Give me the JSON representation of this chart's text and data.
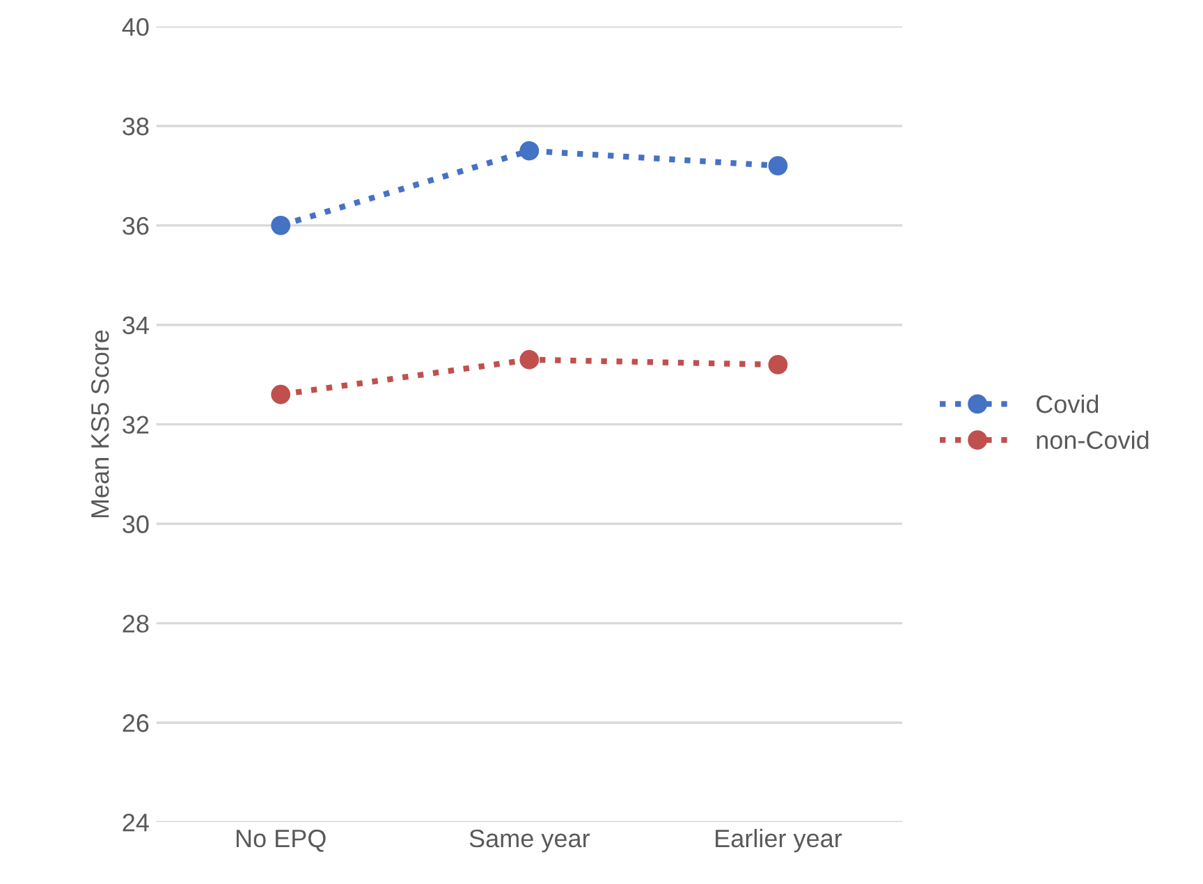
{
  "chart_data": {
    "type": "line",
    "ylabel": "Mean KS5 Score",
    "categories": [
      "No EPQ",
      "Same year",
      "Earlier year"
    ],
    "series": [
      {
        "name": "Covid",
        "color": "#4472c4",
        "values": [
          36.0,
          37.5,
          37.2
        ]
      },
      {
        "name": "non-Covid",
        "color": "#c0504d",
        "values": [
          32.6,
          33.3,
          33.2
        ]
      }
    ],
    "ylim": [
      24,
      40
    ],
    "yticks": [
      24,
      26,
      28,
      30,
      32,
      34,
      36,
      38,
      40
    ],
    "grid": "y",
    "legend": "right",
    "marker": "circle",
    "line_style": "dotted"
  }
}
